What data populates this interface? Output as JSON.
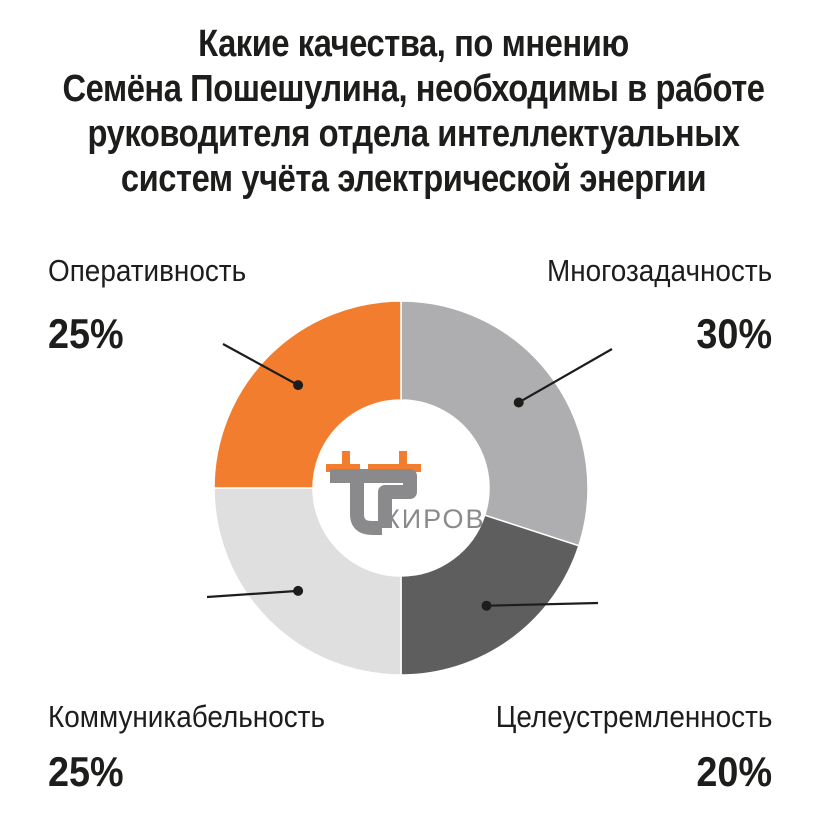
{
  "chart_data": {
    "type": "pie",
    "title_lines": [
      "Какие качества, по мнению",
      "Семёна Пошешулина, необходимы в работе",
      "руководителя отдела интеллектуальных",
      "систем учёта электрической энергии"
    ],
    "slices": [
      {
        "label": "Многозадачность",
        "value": 30,
        "value_label": "30%",
        "color": "#aeaeb0"
      },
      {
        "label": "Целеустремленность",
        "value": 20,
        "value_label": "20%",
        "color": "#5e5e5f"
      },
      {
        "label": "Коммуникабельность",
        "value": 25,
        "value_label": "25%",
        "color": "#dfdfe0"
      },
      {
        "label": "Оперативность",
        "value": 25,
        "value_label": "25%",
        "color": "#f27d2e"
      }
    ],
    "start": "top",
    "direction": "clockwise",
    "donut": true
  },
  "logo": {
    "brand_text": "КИРОВ",
    "accent_color": "#f27d2e",
    "secondary_color": "#8a8a8c"
  }
}
